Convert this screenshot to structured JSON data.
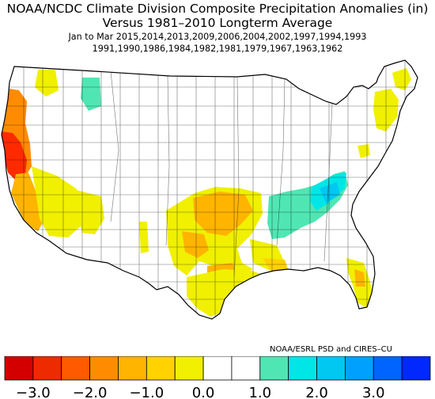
{
  "title": {
    "line1": "NOAA/NCDC Climate Division Composite Precipitation Anomalies (in)",
    "line2": "Versus 1981–2010 Longterm Average",
    "line3": "Jan to Mar  2015,2014,2013,2009,2006,2004,2002,1997,1994,1993",
    "line4": "1991,1990,1986,1984,1982,1981,1979,1967,1963,1962"
  },
  "credit": "NOAA/ESRL PSD and CIRES–CU",
  "colorbar": {
    "bins": [
      {
        "color": "#d40000"
      },
      {
        "color": "#ee2a00"
      },
      {
        "color": "#ff5a00"
      },
      {
        "color": "#ff8c00"
      },
      {
        "color": "#ffb400"
      },
      {
        "color": "#ffd200"
      },
      {
        "color": "#f0f000"
      },
      {
        "color": "#ffffff"
      },
      {
        "color": "#ffffff"
      },
      {
        "color": "#50e6b4"
      },
      {
        "color": "#00e6e6"
      },
      {
        "color": "#00c8f0"
      },
      {
        "color": "#00a0ff"
      },
      {
        "color": "#0064ff"
      },
      {
        "color": "#0028ff"
      }
    ],
    "labels": [
      "−3.0",
      "−2.0",
      "−1.0",
      "0.0",
      "1.0",
      "2.0",
      "3.0"
    ]
  },
  "anomaly_regions": [
    {
      "region": "Northern & central California coast",
      "category": "-2.0 to -3.0",
      "color": "#ff2a00"
    },
    {
      "region": "Oregon / California coast",
      "category": "-1.5 to -2.0",
      "color": "#ff8c00"
    },
    {
      "region": "Southern California",
      "category": "-1.0 to -1.5",
      "color": "#ffb400"
    },
    {
      "region": "Nevada / Arizona",
      "category": "-0.5 to -1.0",
      "color": "#f0f000"
    },
    {
      "region": "Southern Plains (Kansas, Oklahoma)",
      "category": "-1.0 to -1.5",
      "color": "#ffb400"
    },
    {
      "region": "Texas / Louisiana",
      "category": "-0.5 to -1.5",
      "color": "#ffd200"
    },
    {
      "region": "Florida",
      "category": "-0.5 to -1.5",
      "color": "#ffd200"
    },
    {
      "region": "New England",
      "category": "-0.5 to -1.0",
      "color": "#f0f000"
    },
    {
      "region": "Montana (west)",
      "category": "+0.5 to +1.0",
      "color": "#50e6b4"
    },
    {
      "region": "Tennessee Valley / Ohio Valley",
      "category": "+0.5 to +1.5",
      "color": "#00e6e6"
    }
  ]
}
